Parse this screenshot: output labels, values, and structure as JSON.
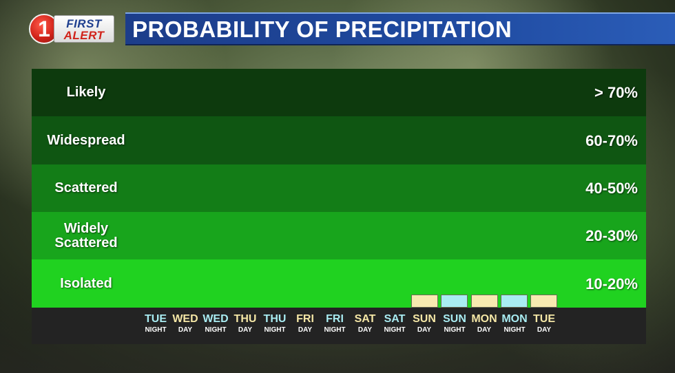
{
  "logo": {
    "numeral": "1",
    "line1": "FIRST",
    "line2": "ALERT"
  },
  "title": "PROBABILITY OF PRECIPITATION",
  "colors": {
    "likely": "#0d3a0d",
    "widespread": "#0f5612",
    "scattered": "#137d17",
    "widely_scattered": "#18a51c",
    "isolated": "#20d220",
    "day_bar": "#f7eab0",
    "night_bar": "#a9ecf2",
    "day_text": "#f5e7a6",
    "night_text": "#a9ecf2"
  },
  "chart_data": {
    "type": "bar",
    "title": "PROBABILITY OF PRECIPITATION",
    "bands": [
      {
        "label": "Likely",
        "range": "> 70%",
        "min": 70,
        "max": 100
      },
      {
        "label": "Widespread",
        "range": "60-70%",
        "min": 60,
        "max": 70
      },
      {
        "label": "Scattered",
        "range": "40-50%",
        "min": 40,
        "max": 50
      },
      {
        "label": "Widely Scattered",
        "range": "20-30%",
        "min": 20,
        "max": 30
      },
      {
        "label": "Isolated",
        "range": "10-20%",
        "min": 10,
        "max": 20
      }
    ],
    "periods": [
      {
        "day": "TUE",
        "part": "NIGHT",
        "value": 0
      },
      {
        "day": "WED",
        "part": "DAY",
        "value": 0
      },
      {
        "day": "WED",
        "part": "NIGHT",
        "value": 0
      },
      {
        "day": "THU",
        "part": "DAY",
        "value": 0
      },
      {
        "day": "THU",
        "part": "NIGHT",
        "value": 0
      },
      {
        "day": "FRI",
        "part": "DAY",
        "value": 0
      },
      {
        "day": "FRI",
        "part": "NIGHT",
        "value": 0
      },
      {
        "day": "SAT",
        "part": "DAY",
        "value": 0
      },
      {
        "day": "SAT",
        "part": "NIGHT",
        "value": 0
      },
      {
        "day": "SUN",
        "part": "DAY",
        "value": 3
      },
      {
        "day": "SUN",
        "part": "NIGHT",
        "value": 3
      },
      {
        "day": "MON",
        "part": "DAY",
        "value": 3
      },
      {
        "day": "MON",
        "part": "NIGHT",
        "value": 3
      },
      {
        "day": "TUE",
        "part": "DAY",
        "value": 3
      }
    ],
    "ylim": [
      0,
      100
    ]
  }
}
